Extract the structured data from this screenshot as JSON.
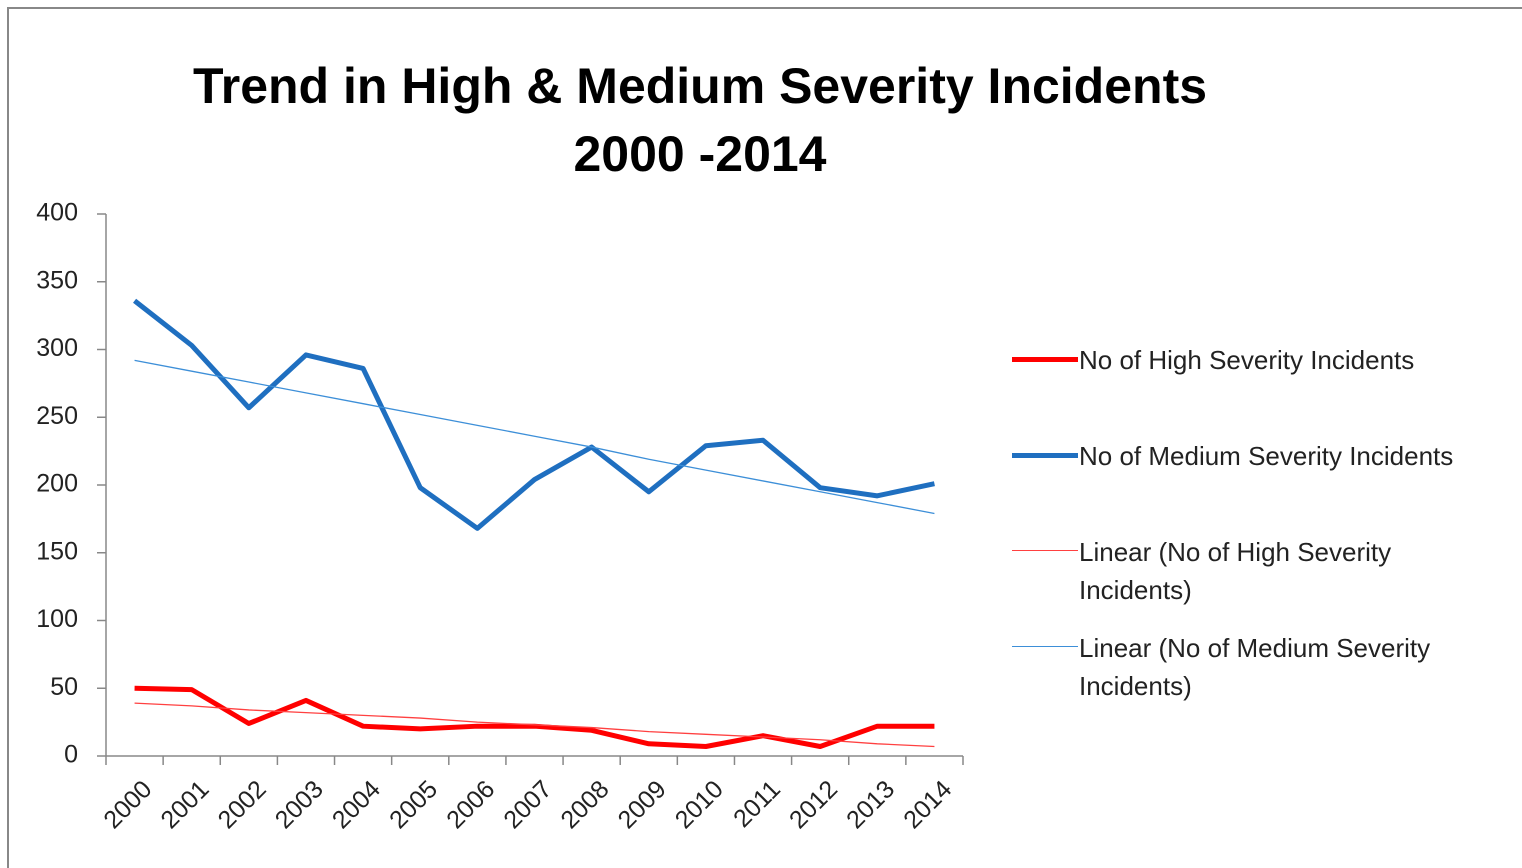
{
  "chart_data": {
    "type": "line",
    "title": "Trend in High & Medium Severity Incidents\n2000 -2014",
    "categories": [
      "2000",
      "2001",
      "2002",
      "2003",
      "2004",
      "2005",
      "2006",
      "2007",
      "2008",
      "2009",
      "2010",
      "2011",
      "2012",
      "2013",
      "2014"
    ],
    "series": [
      {
        "name": "No of High Severity Incidents",
        "color": "#ff0000",
        "width": 5,
        "values": [
          50,
          49,
          24,
          41,
          22,
          20,
          22,
          22,
          19,
          9,
          7,
          15,
          7,
          22,
          22
        ]
      },
      {
        "name": "No of Medium Severity Incidents",
        "color": "#1f6fc0",
        "width": 5,
        "values": [
          336,
          303,
          257,
          296,
          286,
          198,
          168,
          204,
          228,
          195,
          229,
          233,
          198,
          192,
          201
        ]
      },
      {
        "name": "Linear (No of High Severity Incidents)",
        "color": "#ff4040",
        "width": 1.3,
        "values": [
          39,
          37,
          34,
          32,
          30,
          28,
          25,
          23,
          21,
          18,
          16,
          14,
          12,
          9,
          7
        ]
      },
      {
        "name": "Linear (No of Medium Severity Incidents)",
        "color": "#3d8fd8",
        "width": 1.3,
        "values": [
          292,
          284,
          276,
          268,
          260,
          252,
          244,
          236,
          228,
          219,
          211,
          203,
          195,
          187,
          179
        ]
      }
    ],
    "ylim": [
      0,
      400
    ],
    "yticks": [
      0,
      50,
      100,
      150,
      200,
      250,
      300,
      350,
      400
    ],
    "grid": false,
    "legend": "right"
  }
}
